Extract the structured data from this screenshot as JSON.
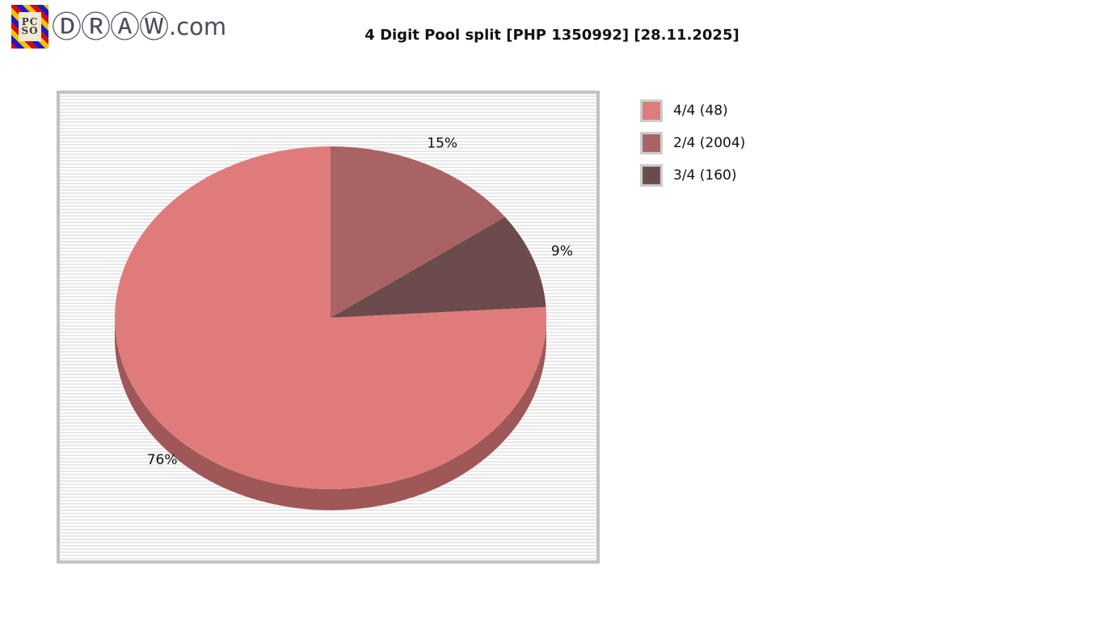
{
  "header": {
    "logo": {
      "icon_text_top": "PC",
      "icon_text_bottom": "SO",
      "brand_circled": "ⒹⓇⒶⓌ",
      "brand_suffix": ".com"
    },
    "title": "4 Digit Pool split [PHP 1350992] [28.11.2025]"
  },
  "chart_data": {
    "type": "pie",
    "title": "4 Digit Pool split [PHP 1350992] [28.11.2025]",
    "currency_pool": "PHP 1350992",
    "draw_date": "28.11.2025",
    "slices": [
      {
        "name": "4/4",
        "count": 48,
        "percent": 76,
        "percent_label": "76%",
        "legend_label": "4/4 (48)",
        "color": "#e07b7b",
        "side_color": "#a05758"
      },
      {
        "name": "2/4",
        "count": 2004,
        "percent": 15,
        "percent_label": "15%",
        "legend_label": "2/4 (2004)",
        "color": "#a96364",
        "side_color": "#7a4748"
      },
      {
        "name": "3/4",
        "count": 160,
        "percent": 9,
        "percent_label": "9%",
        "legend_label": "3/4 (160)",
        "color": "#6b4b4b",
        "side_color": "#503a3b"
      }
    ],
    "layout": {
      "style": "3d",
      "start_angle_deg": -90,
      "direction": "clockwise",
      "draw_sequence": [
        1,
        2,
        0
      ],
      "legend_position": "right",
      "background": "striped",
      "panel_border_color": "#c2c2c2",
      "stripe_color": "#e8e8e8"
    }
  }
}
